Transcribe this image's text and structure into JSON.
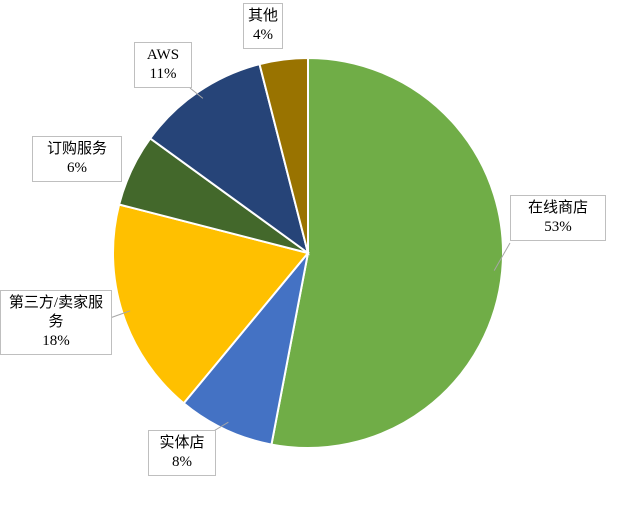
{
  "chart_data": {
    "type": "pie",
    "categories": [
      "在线商店",
      "实体店",
      "第三方/卖家服务",
      "订购服务",
      "AWS",
      "其他"
    ],
    "values": [
      53,
      8,
      18,
      6,
      11,
      4
    ],
    "value_labels": [
      "53%",
      "8%",
      "18%",
      "6%",
      "11%",
      "4%"
    ],
    "colors": [
      "#70ad47",
      "#4472c4",
      "#ffc000",
      "#43682b",
      "#264478",
      "#997300"
    ]
  }
}
